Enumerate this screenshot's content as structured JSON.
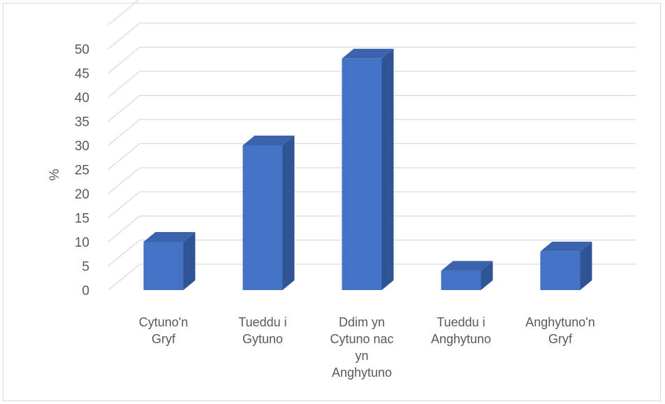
{
  "chart_data": {
    "type": "bar",
    "style": "3d-column",
    "title": "",
    "xlabel": "",
    "ylabel": "%",
    "ylim": [
      0,
      50
    ],
    "ytick_step": 5,
    "grid": true,
    "legend": "none",
    "bar_color": "#4472c4",
    "bar_side_color": "#2f5496",
    "bar_top_color": "#3a62ad",
    "categories": [
      [
        "Cytuno'n",
        "Gryf"
      ],
      [
        "Tueddu i",
        "Gytuno"
      ],
      [
        "Ddim yn",
        "Cytuno nac",
        "yn",
        "Anghytuno"
      ],
      [
        "Tueddu i",
        "Anghytuno"
      ],
      [
        "Anghytuno'n",
        "Gryf"
      ]
    ],
    "values": [
      10,
      30,
      48,
      4,
      8
    ]
  }
}
